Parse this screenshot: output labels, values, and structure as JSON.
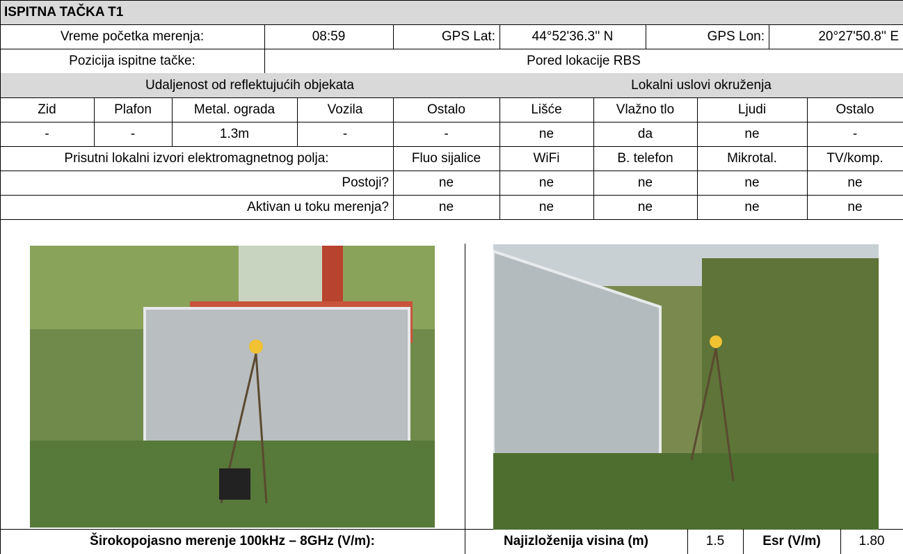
{
  "title": "ISPITNA TAČKA T1",
  "info": {
    "start_label": "Vreme početka merenja:",
    "start": "08:59",
    "lat_label": "GPS Lat:",
    "lat": "44°52'36.3'' N",
    "lon_label": "GPS Lon:",
    "lon": "20°27'50.8'' E",
    "position_label": "Pozicija ispitne tačke:",
    "position": "Pored lokacije RBS"
  },
  "reflective": {
    "title": "Udaljenost od reflektujućih objekata",
    "headers": [
      "Zid",
      "Plafon",
      "Metal. ograda",
      "Vozila",
      "Ostalo"
    ],
    "values": [
      "-",
      "-",
      "1.3m",
      "-",
      "-"
    ]
  },
  "environment": {
    "title": "Lokalni uslovi okruženja",
    "headers": [
      "Lišće",
      "Vlažno tlo",
      "Ljudi",
      "Ostalo"
    ],
    "values": [
      "ne",
      "da",
      "ne",
      "-"
    ]
  },
  "sources": {
    "title": "Prisutni lokalni izvori elektromagnetnog polja:",
    "headers": [
      "Fluo sijalice",
      "WiFi",
      "B. telefon",
      "Mikrotal.",
      "TV/komp."
    ],
    "rows": [
      {
        "label": "Postoji?",
        "values": [
          "ne",
          "ne",
          "ne",
          "ne",
          "ne"
        ]
      },
      {
        "label": "Aktivan u toku merenja?",
        "values": [
          "ne",
          "ne",
          "ne",
          "ne",
          "ne"
        ]
      }
    ]
  },
  "footer": {
    "broadband": "Širokopojasno merenje 100kHz – 8GHz (V/m):",
    "height_label": "Najizloženija visina (m)",
    "height": "1.5",
    "esr_label": "Esr (V/m)",
    "esr": "1.80"
  }
}
